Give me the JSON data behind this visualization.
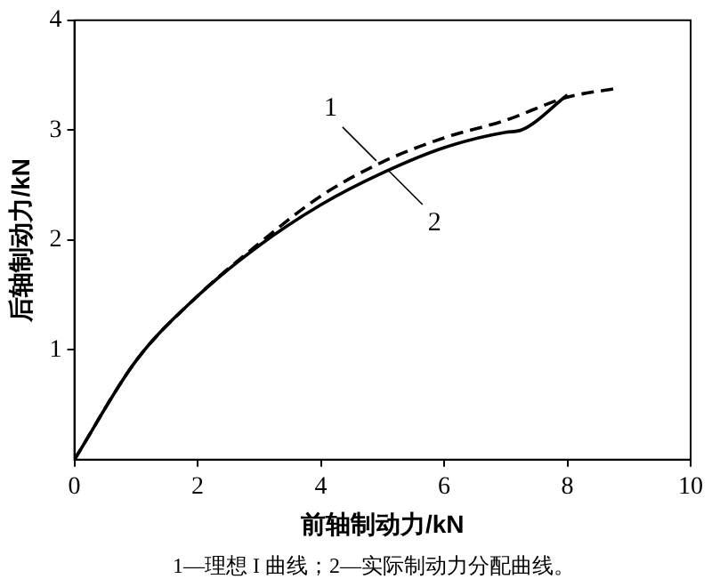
{
  "chart_data": {
    "type": "line",
    "xlabel": "前轴制动力/kN",
    "ylabel": "后轴制动力/kN",
    "xlim": [
      0,
      10
    ],
    "ylim": [
      0,
      4
    ],
    "xticks": [
      0,
      2,
      4,
      6,
      8,
      10
    ],
    "yticks": [
      1,
      2,
      3,
      4
    ],
    "grid": false,
    "legend": false,
    "marker": "none",
    "series": [
      {
        "color": "#000000",
        "line_style": "dashed",
        "x": [
          0,
          1,
          2,
          3,
          4,
          5,
          6,
          7,
          8,
          8.8
        ],
        "values": [
          0,
          0.9,
          1.49,
          1.97,
          2.4,
          2.71,
          2.93,
          3.09,
          3.3,
          3.38
        ]
      },
      {
        "color": "#000000",
        "line_style": "solid",
        "x": [
          0,
          1,
          2,
          3,
          4,
          5,
          6,
          7,
          7.25,
          8
        ],
        "values": [
          0,
          0.9,
          1.49,
          1.95,
          2.32,
          2.61,
          2.84,
          2.98,
          3.0,
          3.32
        ]
      }
    ],
    "annotations": [
      {
        "text": "1",
        "x": 4.9,
        "y": 2.72
      },
      {
        "text": "2",
        "x": 5.1,
        "y": 2.63
      },
      "1—理想 I 曲线；2—实际制动力分配曲线。"
    ]
  }
}
